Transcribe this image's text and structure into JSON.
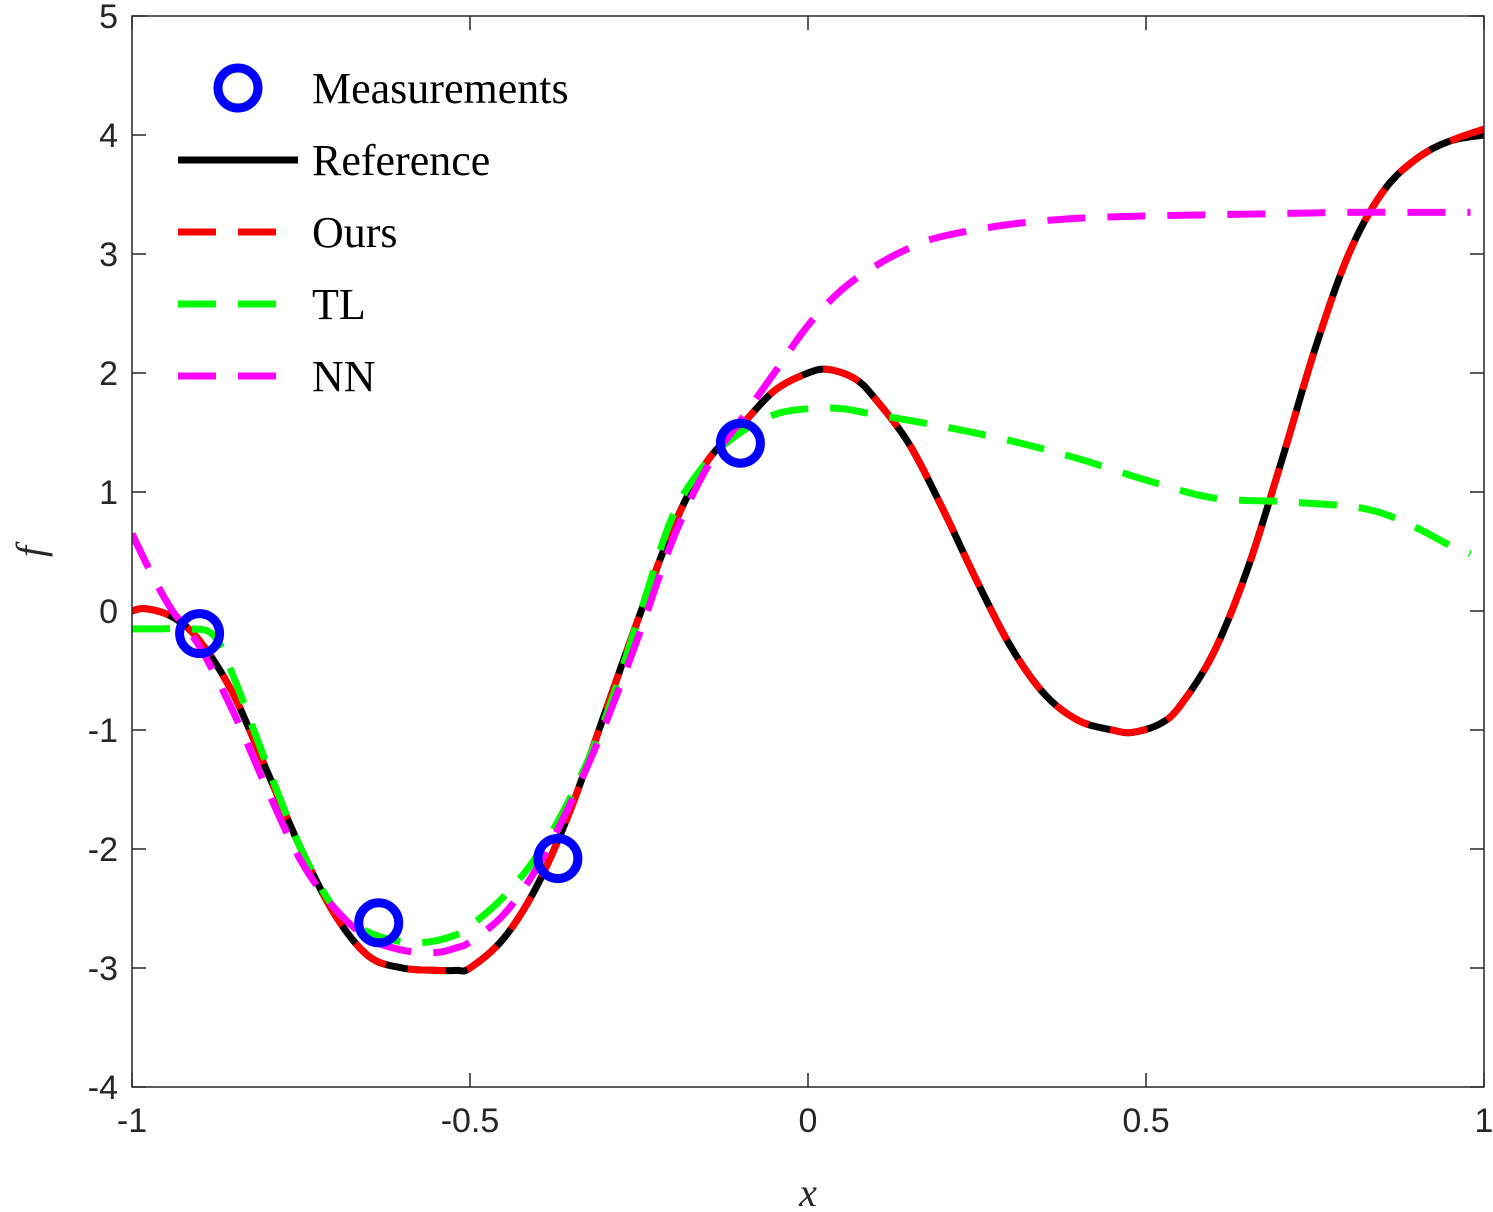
{
  "chart_data": {
    "type": "line",
    "xlabel": "x",
    "ylabel": "f",
    "xlim": [
      -1,
      1
    ],
    "ylim": [
      -4,
      5
    ],
    "xticks": [
      -1,
      -0.5,
      0,
      0.5,
      1
    ],
    "xtick_labels": [
      "-1",
      "-0.5",
      "0",
      "0.5",
      "1"
    ],
    "yticks": [
      -4,
      -3,
      -2,
      -1,
      0,
      1,
      2,
      3,
      4,
      5
    ],
    "ytick_labels": [
      "-4",
      "-3",
      "-2",
      "-1",
      "0",
      "1",
      "2",
      "3",
      "4",
      "5"
    ],
    "grid": false,
    "legend_position": "top-left",
    "series": [
      {
        "name": "Measurements",
        "kind": "markers",
        "color": "#0000ff",
        "x": [
          -0.9,
          -0.635,
          -0.37,
          -0.1
        ],
        "y": [
          -0.19,
          -2.62,
          -2.08,
          1.41
        ]
      },
      {
        "name": "Reference",
        "kind": "solid",
        "color": "#000000",
        "x": [
          -1.0,
          -0.98,
          -0.94,
          -0.9,
          -0.85,
          -0.8,
          -0.75,
          -0.7,
          -0.65,
          -0.6,
          -0.55,
          -0.52,
          -0.5,
          -0.45,
          -0.4,
          -0.35,
          -0.3,
          -0.25,
          -0.2,
          -0.15,
          -0.1,
          -0.05,
          0.0,
          0.03,
          0.07,
          0.1,
          0.15,
          0.2,
          0.25,
          0.3,
          0.35,
          0.4,
          0.45,
          0.48,
          0.52,
          0.55,
          0.6,
          0.65,
          0.7,
          0.75,
          0.8,
          0.85,
          0.9,
          0.95,
          1.0
        ],
        "y": [
          0.0,
          0.02,
          -0.05,
          -0.25,
          -0.7,
          -1.35,
          -2.0,
          -2.55,
          -2.9,
          -3.0,
          -3.02,
          -3.02,
          -3.0,
          -2.75,
          -2.3,
          -1.65,
          -0.85,
          -0.05,
          0.7,
          1.25,
          1.55,
          1.85,
          2.0,
          2.03,
          1.95,
          1.78,
          1.4,
          0.85,
          0.25,
          -0.3,
          -0.7,
          -0.92,
          -1.0,
          -1.02,
          -0.95,
          -0.8,
          -0.35,
          0.35,
          1.25,
          2.2,
          3.0,
          3.52,
          3.8,
          3.95,
          4.0
        ]
      },
      {
        "name": "Ours",
        "kind": "dashed",
        "color": "#ff0000",
        "x": [
          -1.0,
          -0.98,
          -0.94,
          -0.9,
          -0.85,
          -0.8,
          -0.75,
          -0.7,
          -0.65,
          -0.6,
          -0.55,
          -0.52,
          -0.5,
          -0.45,
          -0.4,
          -0.35,
          -0.3,
          -0.25,
          -0.2,
          -0.15,
          -0.1,
          -0.05,
          0.0,
          0.03,
          0.07,
          0.1,
          0.15,
          0.2,
          0.25,
          0.3,
          0.35,
          0.4,
          0.45,
          0.48,
          0.52,
          0.55,
          0.6,
          0.65,
          0.7,
          0.75,
          0.8,
          0.85,
          0.9,
          0.95,
          1.0
        ],
        "y": [
          0.0,
          0.02,
          -0.05,
          -0.25,
          -0.7,
          -1.35,
          -2.0,
          -2.55,
          -2.9,
          -3.0,
          -3.02,
          -3.02,
          -3.0,
          -2.75,
          -2.3,
          -1.65,
          -0.85,
          -0.05,
          0.7,
          1.25,
          1.55,
          1.85,
          2.0,
          2.03,
          1.95,
          1.78,
          1.4,
          0.85,
          0.25,
          -0.3,
          -0.7,
          -0.92,
          -1.0,
          -1.02,
          -0.95,
          -0.8,
          -0.35,
          0.35,
          1.25,
          2.2,
          3.0,
          3.52,
          3.8,
          3.95,
          4.05
        ]
      },
      {
        "name": "TL",
        "kind": "dashed",
        "color": "#00ff00",
        "x": [
          -1.0,
          -0.96,
          -0.92,
          -0.88,
          -0.85,
          -0.8,
          -0.75,
          -0.7,
          -0.65,
          -0.6,
          -0.56,
          -0.52,
          -0.5,
          -0.45,
          -0.4,
          -0.35,
          -0.3,
          -0.25,
          -0.2,
          -0.15,
          -0.1,
          -0.05,
          0.0,
          0.05,
          0.1,
          0.2,
          0.3,
          0.4,
          0.5,
          0.6,
          0.7,
          0.8,
          0.85,
          0.9,
          0.95,
          0.98
        ],
        "y": [
          -0.15,
          -0.15,
          -0.15,
          -0.2,
          -0.55,
          -1.3,
          -2.0,
          -2.5,
          -2.7,
          -2.78,
          -2.78,
          -2.72,
          -2.65,
          -2.4,
          -2.05,
          -1.55,
          -0.9,
          -0.05,
          0.8,
          1.25,
          1.5,
          1.65,
          1.7,
          1.7,
          1.65,
          1.55,
          1.43,
          1.28,
          1.1,
          0.95,
          0.92,
          0.88,
          0.82,
          0.7,
          0.55,
          0.48
        ]
      },
      {
        "name": "NN",
        "kind": "dashed",
        "color": "#ff00ff",
        "x": [
          -1.0,
          -0.97,
          -0.94,
          -0.9,
          -0.85,
          -0.8,
          -0.75,
          -0.7,
          -0.65,
          -0.6,
          -0.55,
          -0.52,
          -0.5,
          -0.45,
          -0.4,
          -0.35,
          -0.3,
          -0.25,
          -0.2,
          -0.15,
          -0.1,
          -0.05,
          0.0,
          0.05,
          0.1,
          0.15,
          0.2,
          0.3,
          0.4,
          0.5,
          0.6,
          0.7,
          0.8,
          0.9,
          0.98
        ],
        "y": [
          0.65,
          0.3,
          0.0,
          -0.3,
          -0.85,
          -1.5,
          -2.1,
          -2.5,
          -2.75,
          -2.85,
          -2.87,
          -2.83,
          -2.78,
          -2.55,
          -2.15,
          -1.6,
          -0.95,
          -0.2,
          0.6,
          1.2,
          1.6,
          2.0,
          2.4,
          2.7,
          2.9,
          3.05,
          3.15,
          3.25,
          3.3,
          3.32,
          3.33,
          3.34,
          3.35,
          3.35,
          3.35
        ]
      }
    ]
  }
}
